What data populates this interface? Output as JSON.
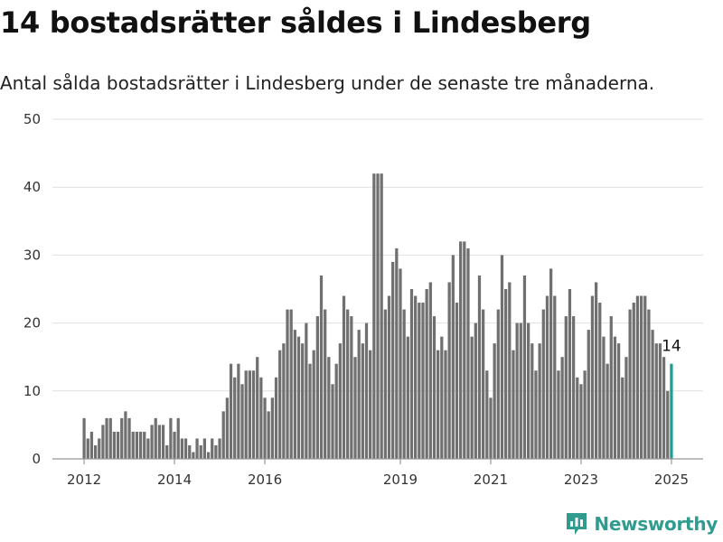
{
  "title": "14 bostadsrätter såldes i Lindesberg",
  "subtitle": "Antal sålda bostadsrätter i Lindesberg under de senaste tre månaderna.",
  "brand": {
    "name": "Newsworthy",
    "icon": "newsworthy-logo-icon",
    "color": "#2f9c8f"
  },
  "colors": {
    "bar": "#707070",
    "highlight": "#1a9e95",
    "grid": "#e1e1e1",
    "axis": "#999999"
  },
  "chart_data": {
    "type": "bar",
    "start_year": 2012,
    "start_month": 1,
    "ylim": [
      0,
      50
    ],
    "yticks": [
      0,
      10,
      20,
      30,
      40,
      50
    ],
    "xticks": [
      "2012",
      "2014",
      "2016",
      "2019",
      "2021",
      "2023",
      "2025"
    ],
    "xtick_years": [
      2012,
      2014,
      2016,
      2019,
      2021,
      2023,
      2025
    ],
    "grid": true,
    "legend": "none",
    "highlight_last": true,
    "annotation": "14",
    "values": [
      6,
      3,
      4,
      2,
      3,
      5,
      6,
      6,
      4,
      4,
      6,
      7,
      6,
      4,
      4,
      4,
      4,
      3,
      5,
      6,
      5,
      5,
      2,
      6,
      4,
      6,
      3,
      3,
      2,
      1,
      3,
      2,
      3,
      1,
      3,
      2,
      3,
      7,
      9,
      14,
      12,
      14,
      11,
      13,
      13,
      13,
      15,
      12,
      9,
      7,
      9,
      12,
      16,
      17,
      22,
      22,
      19,
      18,
      17,
      20,
      14,
      16,
      21,
      27,
      22,
      15,
      11,
      14,
      17,
      24,
      22,
      21,
      15,
      19,
      17,
      20,
      16,
      42,
      42,
      42,
      22,
      24,
      29,
      31,
      28,
      22,
      18,
      25,
      24,
      23,
      23,
      25,
      26,
      21,
      16,
      18,
      16,
      26,
      30,
      23,
      32,
      32,
      31,
      18,
      20,
      27,
      22,
      13,
      9,
      17,
      22,
      30,
      25,
      26,
      16,
      20,
      20,
      27,
      20,
      17,
      13,
      17,
      22,
      24,
      28,
      24,
      13,
      15,
      21,
      25,
      21,
      12,
      11,
      13,
      19,
      24,
      26,
      23,
      18,
      14,
      21,
      18,
      17,
      12,
      15,
      22,
      23,
      24,
      24,
      24,
      22,
      19,
      17,
      17,
      15,
      10,
      14
    ]
  }
}
